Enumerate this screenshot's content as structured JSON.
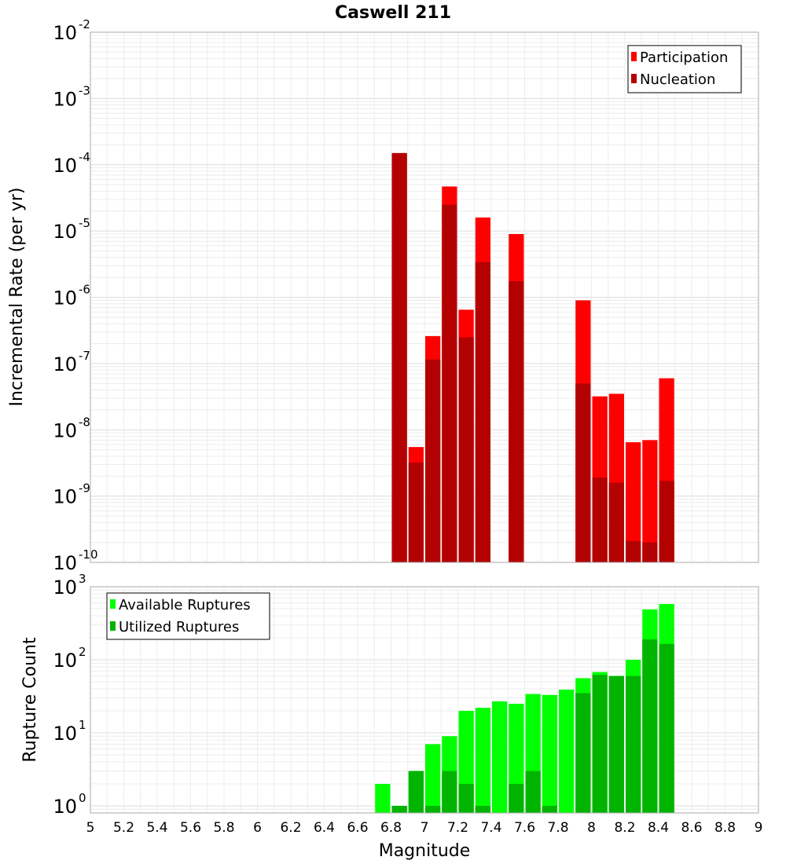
{
  "chart_data": [
    {
      "type": "bar",
      "title": "Caswell 211",
      "xlabel": "",
      "ylabel": "Incremental Rate (per yr)",
      "yscale": "log",
      "ylim": [
        1e-10,
        0.01
      ],
      "xlim": [
        5,
        9
      ],
      "grid": true,
      "legend_placement": "top-right",
      "y_tick_labels": [
        {
          "base": "10",
          "exp": "-10"
        },
        {
          "base": "10",
          "exp": "-9"
        },
        {
          "base": "10",
          "exp": "-8"
        },
        {
          "base": "10",
          "exp": "-7"
        },
        {
          "base": "10",
          "exp": "-6"
        },
        {
          "base": "10",
          "exp": "-5"
        },
        {
          "base": "10",
          "exp": "-4"
        },
        {
          "base": "10",
          "exp": "-3"
        },
        {
          "base": "10",
          "exp": "-2"
        }
      ],
      "series": [
        {
          "name": "Participation",
          "color": "#ff0000",
          "x": [
            6.85,
            6.95,
            7.05,
            7.15,
            7.25,
            7.35,
            7.55,
            7.95,
            8.05,
            8.15,
            8.25,
            8.35,
            8.45
          ],
          "values": [
            0.00015,
            5.5e-09,
            2.6e-07,
            4.7e-05,
            6.5e-07,
            1.6e-05,
            9e-06,
            9e-07,
            3.2e-08,
            3.5e-08,
            6.5e-09,
            7e-09,
            6e-08
          ]
        },
        {
          "name": "Nucleation",
          "color": "#b30000",
          "x": [
            6.85,
            6.95,
            7.05,
            7.15,
            7.25,
            7.35,
            7.55,
            7.95,
            8.05,
            8.15,
            8.25,
            8.35,
            8.45
          ],
          "values": [
            0.00015,
            3.2e-09,
            1.15e-07,
            2.5e-05,
            2.5e-07,
            3.4e-06,
            1.75e-06,
            5e-08,
            1.9e-09,
            1.6e-09,
            2.1e-10,
            2e-10,
            1.7e-09
          ]
        }
      ]
    },
    {
      "type": "bar",
      "xlabel": "Magnitude",
      "ylabel": "Rupture Count",
      "yscale": "log",
      "ylim": [
        0.8,
        1000
      ],
      "xlim": [
        5,
        9
      ],
      "grid": true,
      "legend_placement": "top-left",
      "y_tick_labels": [
        {
          "base": "10",
          "exp": "0"
        },
        {
          "base": "10",
          "exp": "1"
        },
        {
          "base": "10",
          "exp": "2"
        },
        {
          "base": "10",
          "exp": "3"
        }
      ],
      "x_tick_labels": [
        "5",
        "5.2",
        "5.4",
        "5.6",
        "5.8",
        "6",
        "6.2",
        "6.4",
        "6.6",
        "6.8",
        "7",
        "7.2",
        "7.4",
        "7.6",
        "7.8",
        "8",
        "8.2",
        "8.4",
        "8.6",
        "8.8",
        "9"
      ],
      "series": [
        {
          "name": "Available Ruptures",
          "color": "#00ff00",
          "x": [
            6.75,
            6.85,
            6.95,
            7.05,
            7.15,
            7.25,
            7.35,
            7.45,
            7.55,
            7.65,
            7.75,
            7.85,
            7.95,
            8.05,
            8.15,
            8.25,
            8.35,
            8.45
          ],
          "values": [
            2,
            1,
            3,
            7,
            9,
            20,
            22,
            27,
            25,
            34,
            33,
            39,
            56,
            68,
            60,
            100,
            490,
            580
          ]
        },
        {
          "name": "Utilized Ruptures",
          "color": "#00b400",
          "x": [
            6.85,
            6.95,
            7.05,
            7.15,
            7.25,
            7.35,
            7.55,
            7.65,
            7.75,
            7.95,
            8.05,
            8.15,
            8.25,
            8.35,
            8.45
          ],
          "values": [
            1,
            3,
            1,
            3,
            2,
            1,
            2,
            3,
            1,
            35,
            62,
            60,
            60,
            190,
            165
          ]
        }
      ]
    }
  ]
}
